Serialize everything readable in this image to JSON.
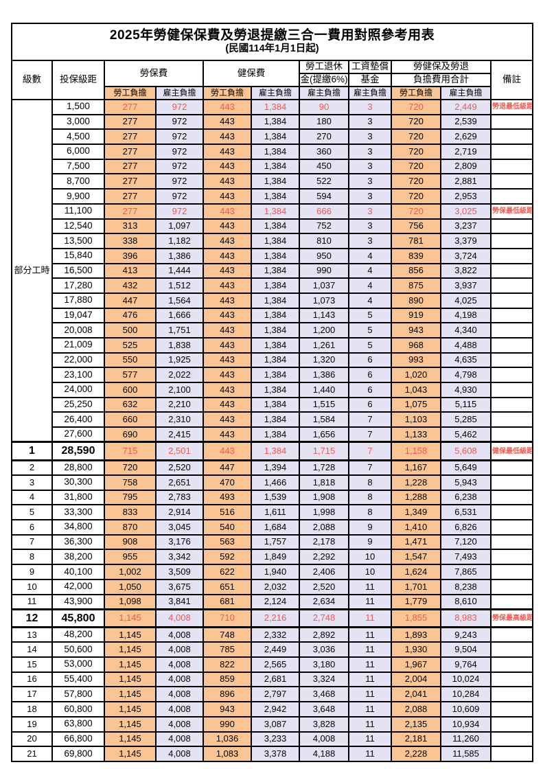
{
  "title": "2025年勞健保保費及勞退提繳三合一費用對照參考用表",
  "subtitle": "(民國114年1月1日起)",
  "colors": {
    "employee_column_bg": "#FAC592",
    "employer_column_bg": "#E5E3F3",
    "highlight_red": "#F5564E",
    "border": "#000000"
  },
  "header": {
    "level": "級數",
    "bracket": "投保級距",
    "labor_ins": "勞保費",
    "health_ins": "健保費",
    "pension_l1": "勞工退休",
    "pension_l2": "金(提繳6%)",
    "wage_fund_l1": "工資墊償",
    "wage_fund_l2": "基金",
    "total_l1": "勞健保及勞退",
    "total_l2": "負擔費用合計",
    "remark": "備註",
    "employee": "勞工負擔",
    "employer": "雇主負擔"
  },
  "part_time_label": "部分工時",
  "part_time_rowspan": 23,
  "rows": [
    {
      "b": "1,500",
      "v": [
        "277",
        "972",
        "443",
        "1,384",
        "90",
        "3",
        "720",
        "2,449"
      ],
      "r": "勞退最低級距",
      "red": true
    },
    {
      "b": "3,000",
      "v": [
        "277",
        "972",
        "443",
        "1,384",
        "180",
        "3",
        "720",
        "2,539"
      ],
      "r": ""
    },
    {
      "b": "4,500",
      "v": [
        "277",
        "972",
        "443",
        "1,384",
        "270",
        "3",
        "720",
        "2,629"
      ],
      "r": ""
    },
    {
      "b": "6,000",
      "v": [
        "277",
        "972",
        "443",
        "1,384",
        "360",
        "3",
        "720",
        "2,719"
      ],
      "r": ""
    },
    {
      "b": "7,500",
      "v": [
        "277",
        "972",
        "443",
        "1,384",
        "450",
        "3",
        "720",
        "2,809"
      ],
      "r": ""
    },
    {
      "b": "8,700",
      "v": [
        "277",
        "972",
        "443",
        "1,384",
        "522",
        "3",
        "720",
        "2,881"
      ],
      "r": ""
    },
    {
      "b": "9,900",
      "v": [
        "277",
        "972",
        "443",
        "1,384",
        "594",
        "3",
        "720",
        "2,953"
      ],
      "r": ""
    },
    {
      "b": "11,100",
      "v": [
        "277",
        "972",
        "443",
        "1,384",
        "666",
        "3",
        "720",
        "3,025"
      ],
      "r": "勞保最低級距",
      "red": true
    },
    {
      "b": "12,540",
      "v": [
        "313",
        "1,097",
        "443",
        "1,384",
        "752",
        "3",
        "756",
        "3,237"
      ],
      "r": ""
    },
    {
      "b": "13,500",
      "v": [
        "338",
        "1,182",
        "443",
        "1,384",
        "810",
        "3",
        "781",
        "3,379"
      ],
      "r": ""
    },
    {
      "b": "15,840",
      "v": [
        "396",
        "1,386",
        "443",
        "1,384",
        "950",
        "4",
        "839",
        "3,724"
      ],
      "r": ""
    },
    {
      "b": "16,500",
      "v": [
        "413",
        "1,444",
        "443",
        "1,384",
        "990",
        "4",
        "856",
        "3,822"
      ],
      "r": ""
    },
    {
      "b": "17,280",
      "v": [
        "432",
        "1,512",
        "443",
        "1,384",
        "1,037",
        "4",
        "875",
        "3,937"
      ],
      "r": ""
    },
    {
      "b": "17,880",
      "v": [
        "447",
        "1,564",
        "443",
        "1,384",
        "1,073",
        "4",
        "890",
        "4,025"
      ],
      "r": ""
    },
    {
      "b": "19,047",
      "v": [
        "476",
        "1,666",
        "443",
        "1,384",
        "1,143",
        "5",
        "919",
        "4,198"
      ],
      "r": ""
    },
    {
      "b": "20,008",
      "v": [
        "500",
        "1,751",
        "443",
        "1,384",
        "1,200",
        "5",
        "943",
        "4,340"
      ],
      "r": ""
    },
    {
      "b": "21,009",
      "v": [
        "525",
        "1,838",
        "443",
        "1,384",
        "1,261",
        "5",
        "968",
        "4,488"
      ],
      "r": ""
    },
    {
      "b": "22,000",
      "v": [
        "550",
        "1,925",
        "443",
        "1,384",
        "1,320",
        "6",
        "993",
        "4,635"
      ],
      "r": ""
    },
    {
      "b": "23,100",
      "v": [
        "577",
        "2,022",
        "443",
        "1,384",
        "1,386",
        "6",
        "1,020",
        "4,798"
      ],
      "r": ""
    },
    {
      "b": "24,000",
      "v": [
        "600",
        "2,100",
        "443",
        "1,384",
        "1,440",
        "6",
        "1,043",
        "4,930"
      ],
      "r": ""
    },
    {
      "b": "25,250",
      "v": [
        "632",
        "2,210",
        "443",
        "1,384",
        "1,515",
        "6",
        "1,075",
        "5,115"
      ],
      "r": ""
    },
    {
      "b": "26,400",
      "v": [
        "660",
        "2,310",
        "443",
        "1,384",
        "1,584",
        "7",
        "1,103",
        "5,285"
      ],
      "r": ""
    },
    {
      "b": "27,600",
      "v": [
        "690",
        "2,415",
        "443",
        "1,384",
        "1,656",
        "7",
        "1,133",
        "5,462"
      ],
      "r": ""
    },
    {
      "l": "1",
      "b": "28,590",
      "v": [
        "715",
        "2,501",
        "443",
        "1,384",
        "1,715",
        "7",
        "1,158",
        "5,608"
      ],
      "r": "健保最低級距",
      "red": true,
      "bold": true
    },
    {
      "l": "2",
      "b": "28,800",
      "v": [
        "720",
        "2,520",
        "447",
        "1,394",
        "1,728",
        "7",
        "1,167",
        "5,649"
      ],
      "r": ""
    },
    {
      "l": "3",
      "b": "30,300",
      "v": [
        "758",
        "2,651",
        "470",
        "1,466",
        "1,818",
        "8",
        "1,228",
        "5,943"
      ],
      "r": ""
    },
    {
      "l": "4",
      "b": "31,800",
      "v": [
        "795",
        "2,783",
        "493",
        "1,539",
        "1,908",
        "8",
        "1,288",
        "6,238"
      ],
      "r": ""
    },
    {
      "l": "5",
      "b": "33,300",
      "v": [
        "833",
        "2,914",
        "516",
        "1,611",
        "1,998",
        "8",
        "1,349",
        "6,531"
      ],
      "r": ""
    },
    {
      "l": "6",
      "b": "34,800",
      "v": [
        "870",
        "3,045",
        "540",
        "1,684",
        "2,088",
        "9",
        "1,410",
        "6,826"
      ],
      "r": ""
    },
    {
      "l": "7",
      "b": "36,300",
      "v": [
        "908",
        "3,176",
        "563",
        "1,757",
        "2,178",
        "9",
        "1,471",
        "7,120"
      ],
      "r": ""
    },
    {
      "l": "8",
      "b": "38,200",
      "v": [
        "955",
        "3,342",
        "592",
        "1,849",
        "2,292",
        "10",
        "1,547",
        "7,493"
      ],
      "r": ""
    },
    {
      "l": "9",
      "b": "40,100",
      "v": [
        "1,002",
        "3,509",
        "622",
        "1,940",
        "2,406",
        "10",
        "1,624",
        "7,865"
      ],
      "r": ""
    },
    {
      "l": "10",
      "b": "42,000",
      "v": [
        "1,050",
        "3,675",
        "651",
        "2,032",
        "2,520",
        "11",
        "1,701",
        "8,238"
      ],
      "r": ""
    },
    {
      "l": "11",
      "b": "43,900",
      "v": [
        "1,098",
        "3,841",
        "681",
        "2,124",
        "2,634",
        "11",
        "1,779",
        "8,610"
      ],
      "r": ""
    },
    {
      "l": "12",
      "b": "45,800",
      "v": [
        "1,145",
        "4,008",
        "710",
        "2,216",
        "2,748",
        "11",
        "1,855",
        "8,983"
      ],
      "r": "勞保最高級距",
      "red": true,
      "bold": true
    },
    {
      "l": "13",
      "b": "48,200",
      "v": [
        "1,145",
        "4,008",
        "748",
        "2,332",
        "2,892",
        "11",
        "1,893",
        "9,243"
      ],
      "r": ""
    },
    {
      "l": "14",
      "b": "50,600",
      "v": [
        "1,145",
        "4,008",
        "785",
        "2,449",
        "3,036",
        "11",
        "1,930",
        "9,504"
      ],
      "r": ""
    },
    {
      "l": "15",
      "b": "53,000",
      "v": [
        "1,145",
        "4,008",
        "822",
        "2,565",
        "3,180",
        "11",
        "1,967",
        "9,764"
      ],
      "r": ""
    },
    {
      "l": "16",
      "b": "55,400",
      "v": [
        "1,145",
        "4,008",
        "859",
        "2,681",
        "3,324",
        "11",
        "2,004",
        "10,024"
      ],
      "r": ""
    },
    {
      "l": "17",
      "b": "57,800",
      "v": [
        "1,145",
        "4,008",
        "896",
        "2,797",
        "3,468",
        "11",
        "2,041",
        "10,284"
      ],
      "r": ""
    },
    {
      "l": "18",
      "b": "60,800",
      "v": [
        "1,145",
        "4,008",
        "943",
        "2,942",
        "3,648",
        "11",
        "2,088",
        "10,609"
      ],
      "r": ""
    },
    {
      "l": "19",
      "b": "63,800",
      "v": [
        "1,145",
        "4,008",
        "990",
        "3,087",
        "3,828",
        "11",
        "2,135",
        "10,934"
      ],
      "r": ""
    },
    {
      "l": "20",
      "b": "66,800",
      "v": [
        "1,145",
        "4,008",
        "1,036",
        "3,233",
        "4,008",
        "11",
        "2,181",
        "11,260"
      ],
      "r": ""
    },
    {
      "l": "21",
      "b": "69,800",
      "v": [
        "1,145",
        "4,008",
        "1,083",
        "3,378",
        "4,188",
        "11",
        "2,228",
        "11,585"
      ],
      "r": ""
    }
  ]
}
